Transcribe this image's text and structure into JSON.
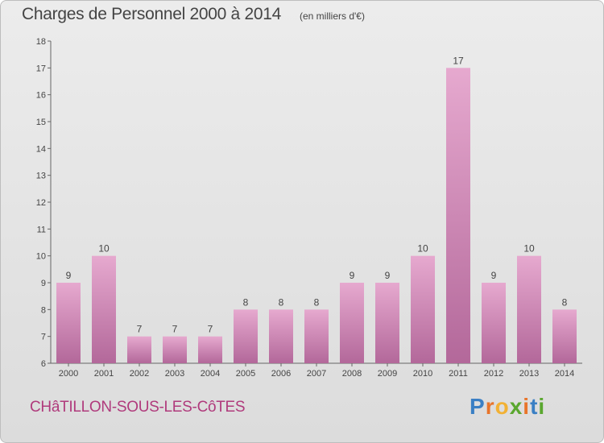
{
  "header": {
    "title": "Charges de Personnel 2000 à 2014",
    "subtitle": "(en milliers d'€)"
  },
  "footer": {
    "commune": "CHâTILLON-SOUS-LES-CôTES",
    "brand": [
      "P",
      "r",
      "o",
      "x",
      "i",
      "t",
      "i"
    ],
    "brand_colors": [
      "#3a7fc4",
      "#e8742a",
      "#f2b134",
      "#5aa72f",
      "#e8742a",
      "#3a7fc4",
      "#5aa72f"
    ]
  },
  "chart_data": {
    "type": "bar",
    "categories": [
      "2000",
      "2001",
      "2002",
      "2003",
      "2004",
      "2005",
      "2006",
      "2007",
      "2008",
      "2009",
      "2010",
      "2011",
      "2012",
      "2013",
      "2014"
    ],
    "values": [
      9,
      10,
      7,
      7,
      7,
      8,
      8,
      8,
      9,
      9,
      10,
      17,
      9,
      10,
      8
    ],
    "data_labels": [
      "9",
      "10",
      "7",
      "7",
      "7",
      "8",
      "8",
      "8",
      "9",
      "9",
      "10",
      "17",
      "9",
      "10",
      "8"
    ],
    "yticks": [
      6,
      7,
      8,
      9,
      10,
      11,
      12,
      13,
      14,
      15,
      16,
      17,
      18
    ],
    "ylim": [
      6,
      18
    ],
    "grid": false,
    "colors": {
      "bar_light": "#e6a9cf",
      "bar_dark": "#b3689a",
      "axis": "#666666"
    }
  }
}
